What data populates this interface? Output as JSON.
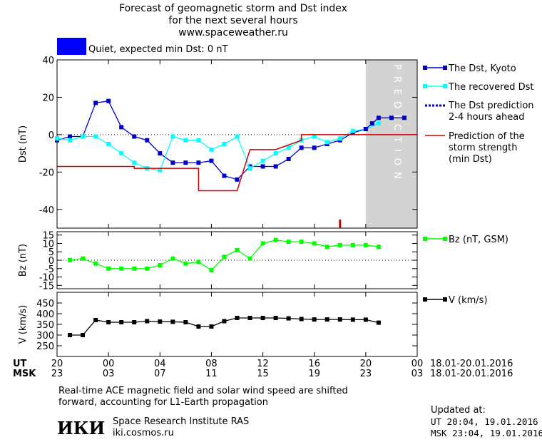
{
  "header": {
    "title_line1": "Forecast of geomagnetic storm and Dst index",
    "title_line2": "for the next several hours",
    "title_line3": "www.spaceweather.ru"
  },
  "status": {
    "text": "Quiet, expected min Dst: 0 nT",
    "color": "#0000ff"
  },
  "time_axis": {
    "ut_label": "UT",
    "msk_label": "MSK",
    "ut_ticks": [
      "20",
      "00",
      "04",
      "08",
      "12",
      "16",
      "20",
      "00"
    ],
    "msk_ticks": [
      "23",
      "03",
      "07",
      "11",
      "15",
      "19",
      "23",
      "03"
    ],
    "ut_range": "18.01-20.01.2016",
    "msk_range": "18.01-20.01.2016",
    "tick_hours": [
      0,
      4,
      8,
      12,
      16,
      20,
      24,
      28
    ]
  },
  "chart_data": [
    {
      "type": "line",
      "ylabel": "Dst (nT)",
      "ylim": [
        -50,
        40
      ],
      "yticks": [
        -40,
        -20,
        0,
        20,
        40
      ],
      "xlim": [
        0,
        28
      ],
      "prediction_label": "PREDICTION",
      "prediction_start_hour": 24,
      "series": [
        {
          "name": "The Dst, Kyoto",
          "color": "#0000cc",
          "x": [
            0,
            1,
            2,
            3,
            4,
            5,
            6,
            7,
            8,
            9,
            10,
            11,
            12,
            13,
            14,
            15,
            16,
            17,
            18,
            19,
            20,
            21,
            22,
            23,
            24
          ],
          "values": [
            -3,
            -1,
            -1,
            17,
            18,
            4,
            -1,
            -3,
            -10,
            -15,
            -15,
            -15,
            -14,
            -22,
            -24,
            -17,
            -17,
            -17,
            -13,
            -7,
            -7,
            -5,
            -3,
            1,
            3
          ]
        },
        {
          "name": "The recovered Dst",
          "color": "#00ffff",
          "x": [
            0,
            1,
            2,
            3,
            4,
            5,
            6,
            7,
            8,
            9,
            10,
            11,
            12,
            13,
            14,
            15,
            16,
            17,
            18,
            19,
            20,
            21,
            22,
            23,
            24,
            25
          ],
          "values": [
            -2,
            -3,
            -1,
            -1,
            -5,
            -10,
            -15,
            -18,
            -19,
            -1,
            -3,
            -3,
            -8,
            -5,
            -1,
            -18,
            -14,
            -10,
            -7,
            -3,
            -1,
            -4,
            -2,
            2,
            3,
            6
          ]
        },
        {
          "name": "The Dst prediction 2-4 hours ahead",
          "label_line1": "The Dst prediction",
          "label_line2": "2-4 hours ahead",
          "color": "#0000cc",
          "x": [
            24,
            24.5,
            25,
            26,
            27
          ],
          "values": [
            3,
            6,
            9,
            9,
            9
          ]
        },
        {
          "name": "Prediction of the storm strength (min Dst)",
          "label_line1": "Prediction of the",
          "label_line2": "storm strength",
          "label_line3": "(min Dst)",
          "color": "#cc0000",
          "x": [
            0,
            6,
            6,
            11,
            11,
            14,
            14,
            15,
            17,
            19,
            19,
            28
          ],
          "values": [
            -17,
            -17,
            -18,
            -18,
            -30,
            -30,
            -30,
            -8,
            -8,
            -3,
            0,
            0
          ]
        }
      ],
      "current_marker_hour": 22
    },
    {
      "type": "line",
      "ylabel": "Bz (nT)",
      "ylim": [
        -17,
        17
      ],
      "yticks": [
        -15,
        -10,
        -5,
        0,
        5,
        10,
        15
      ],
      "series": [
        {
          "name": "Bz (nT, GSM)",
          "color": "#00ff00",
          "x": [
            1,
            2,
            3,
            4,
            5,
            6,
            7,
            8,
            9,
            10,
            11,
            12,
            13,
            14,
            15,
            16,
            17,
            18,
            19,
            20,
            21,
            22,
            23,
            24,
            25
          ],
          "values": [
            0,
            1,
            -2,
            -5,
            -5,
            -5,
            -5,
            -3,
            1,
            -2,
            -1,
            -6,
            2,
            6,
            1,
            10,
            12,
            11,
            11,
            10,
            8,
            9,
            9,
            9,
            8
          ]
        }
      ]
    },
    {
      "type": "line",
      "ylabel": "V (km/s)",
      "ylim": [
        200,
        500
      ],
      "yticks": [
        250,
        300,
        350,
        400,
        450
      ],
      "series": [
        {
          "name": "V (km/s)",
          "color": "#000000",
          "x": [
            1,
            2,
            3,
            4,
            5,
            6,
            7,
            8,
            9,
            10,
            11,
            12,
            13,
            14,
            15,
            16,
            17,
            18,
            19,
            20,
            21,
            22,
            23,
            24,
            25
          ],
          "values": [
            300,
            300,
            370,
            360,
            360,
            360,
            365,
            363,
            362,
            360,
            340,
            340,
            365,
            380,
            380,
            380,
            380,
            378,
            375,
            373,
            373,
            373,
            372,
            372,
            358
          ]
        }
      ]
    }
  ],
  "footer": {
    "note_line1": "Real-time ACE magnetic field and solar wind speed are shifted",
    "note_line2": "forward, accounting for L1-Earth propagation",
    "logo": "ИКИ",
    "institute": "Space Research Institute RAS",
    "site": "iki.cosmos.ru",
    "updated_label": "Updated at:",
    "updated_ut": "UT  20:04, 19.01.2016",
    "updated_msk": "MSK 23:04, 19.01.2016"
  }
}
